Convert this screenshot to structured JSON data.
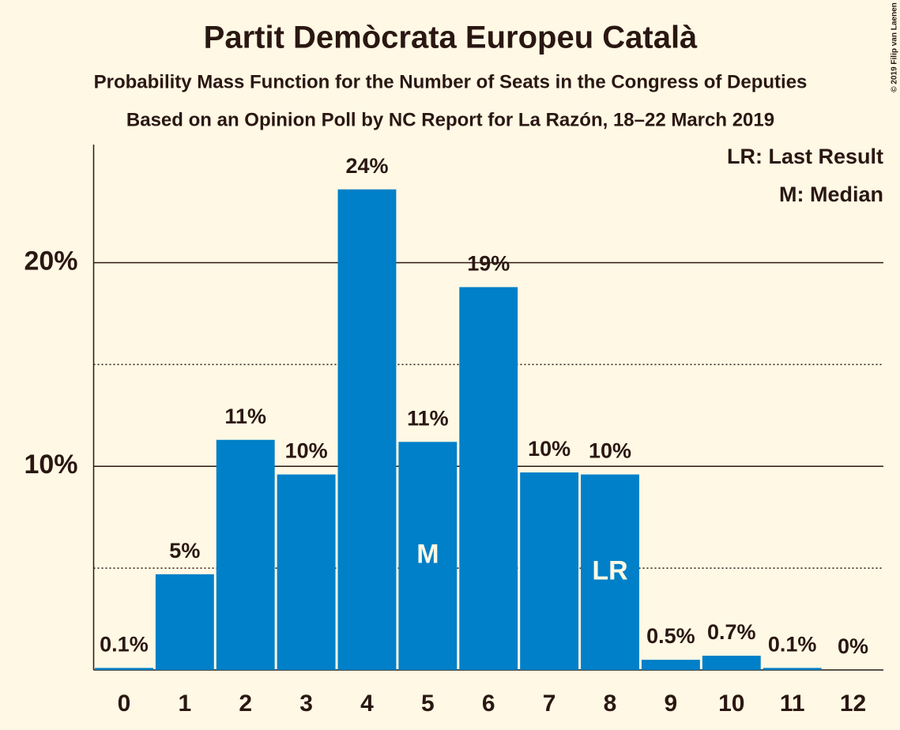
{
  "chart_data": {
    "type": "bar",
    "title": "Partit Demòcrata Europeu Català",
    "subtitle": "Probability Mass Function for the Number of Seats in the Congress of Deputies",
    "subtitle2": "Based on an Opinion Poll by NC Report for La Razón, 18–22 March 2019",
    "copyright": "© 2019 Filip van Laenen",
    "categories": [
      "0",
      "1",
      "2",
      "3",
      "4",
      "5",
      "6",
      "7",
      "8",
      "9",
      "10",
      "11",
      "12"
    ],
    "values": [
      0.1,
      4.7,
      11.3,
      9.6,
      23.6,
      11.2,
      18.8,
      9.7,
      9.6,
      0.5,
      0.7,
      0.1,
      0
    ],
    "value_labels": [
      "0.1%",
      "5%",
      "11%",
      "10%",
      "24%",
      "11%",
      "19%",
      "10%",
      "10%",
      "0.5%",
      "0.7%",
      "0.1%",
      "0%"
    ],
    "color": "#0080c8",
    "ylim": [
      0,
      25.8
    ],
    "yticks": [
      {
        "value": 10,
        "label": "10%"
      },
      {
        "value": 20,
        "label": "20%"
      }
    ],
    "minor_yticks": [
      5,
      15
    ],
    "grid": true,
    "annotations": [
      {
        "index": 5,
        "label": "M"
      },
      {
        "index": 8,
        "label": "LR"
      }
    ],
    "legend": [
      "LR: Last Result",
      "M: Median"
    ],
    "legend_position": "top-right"
  }
}
